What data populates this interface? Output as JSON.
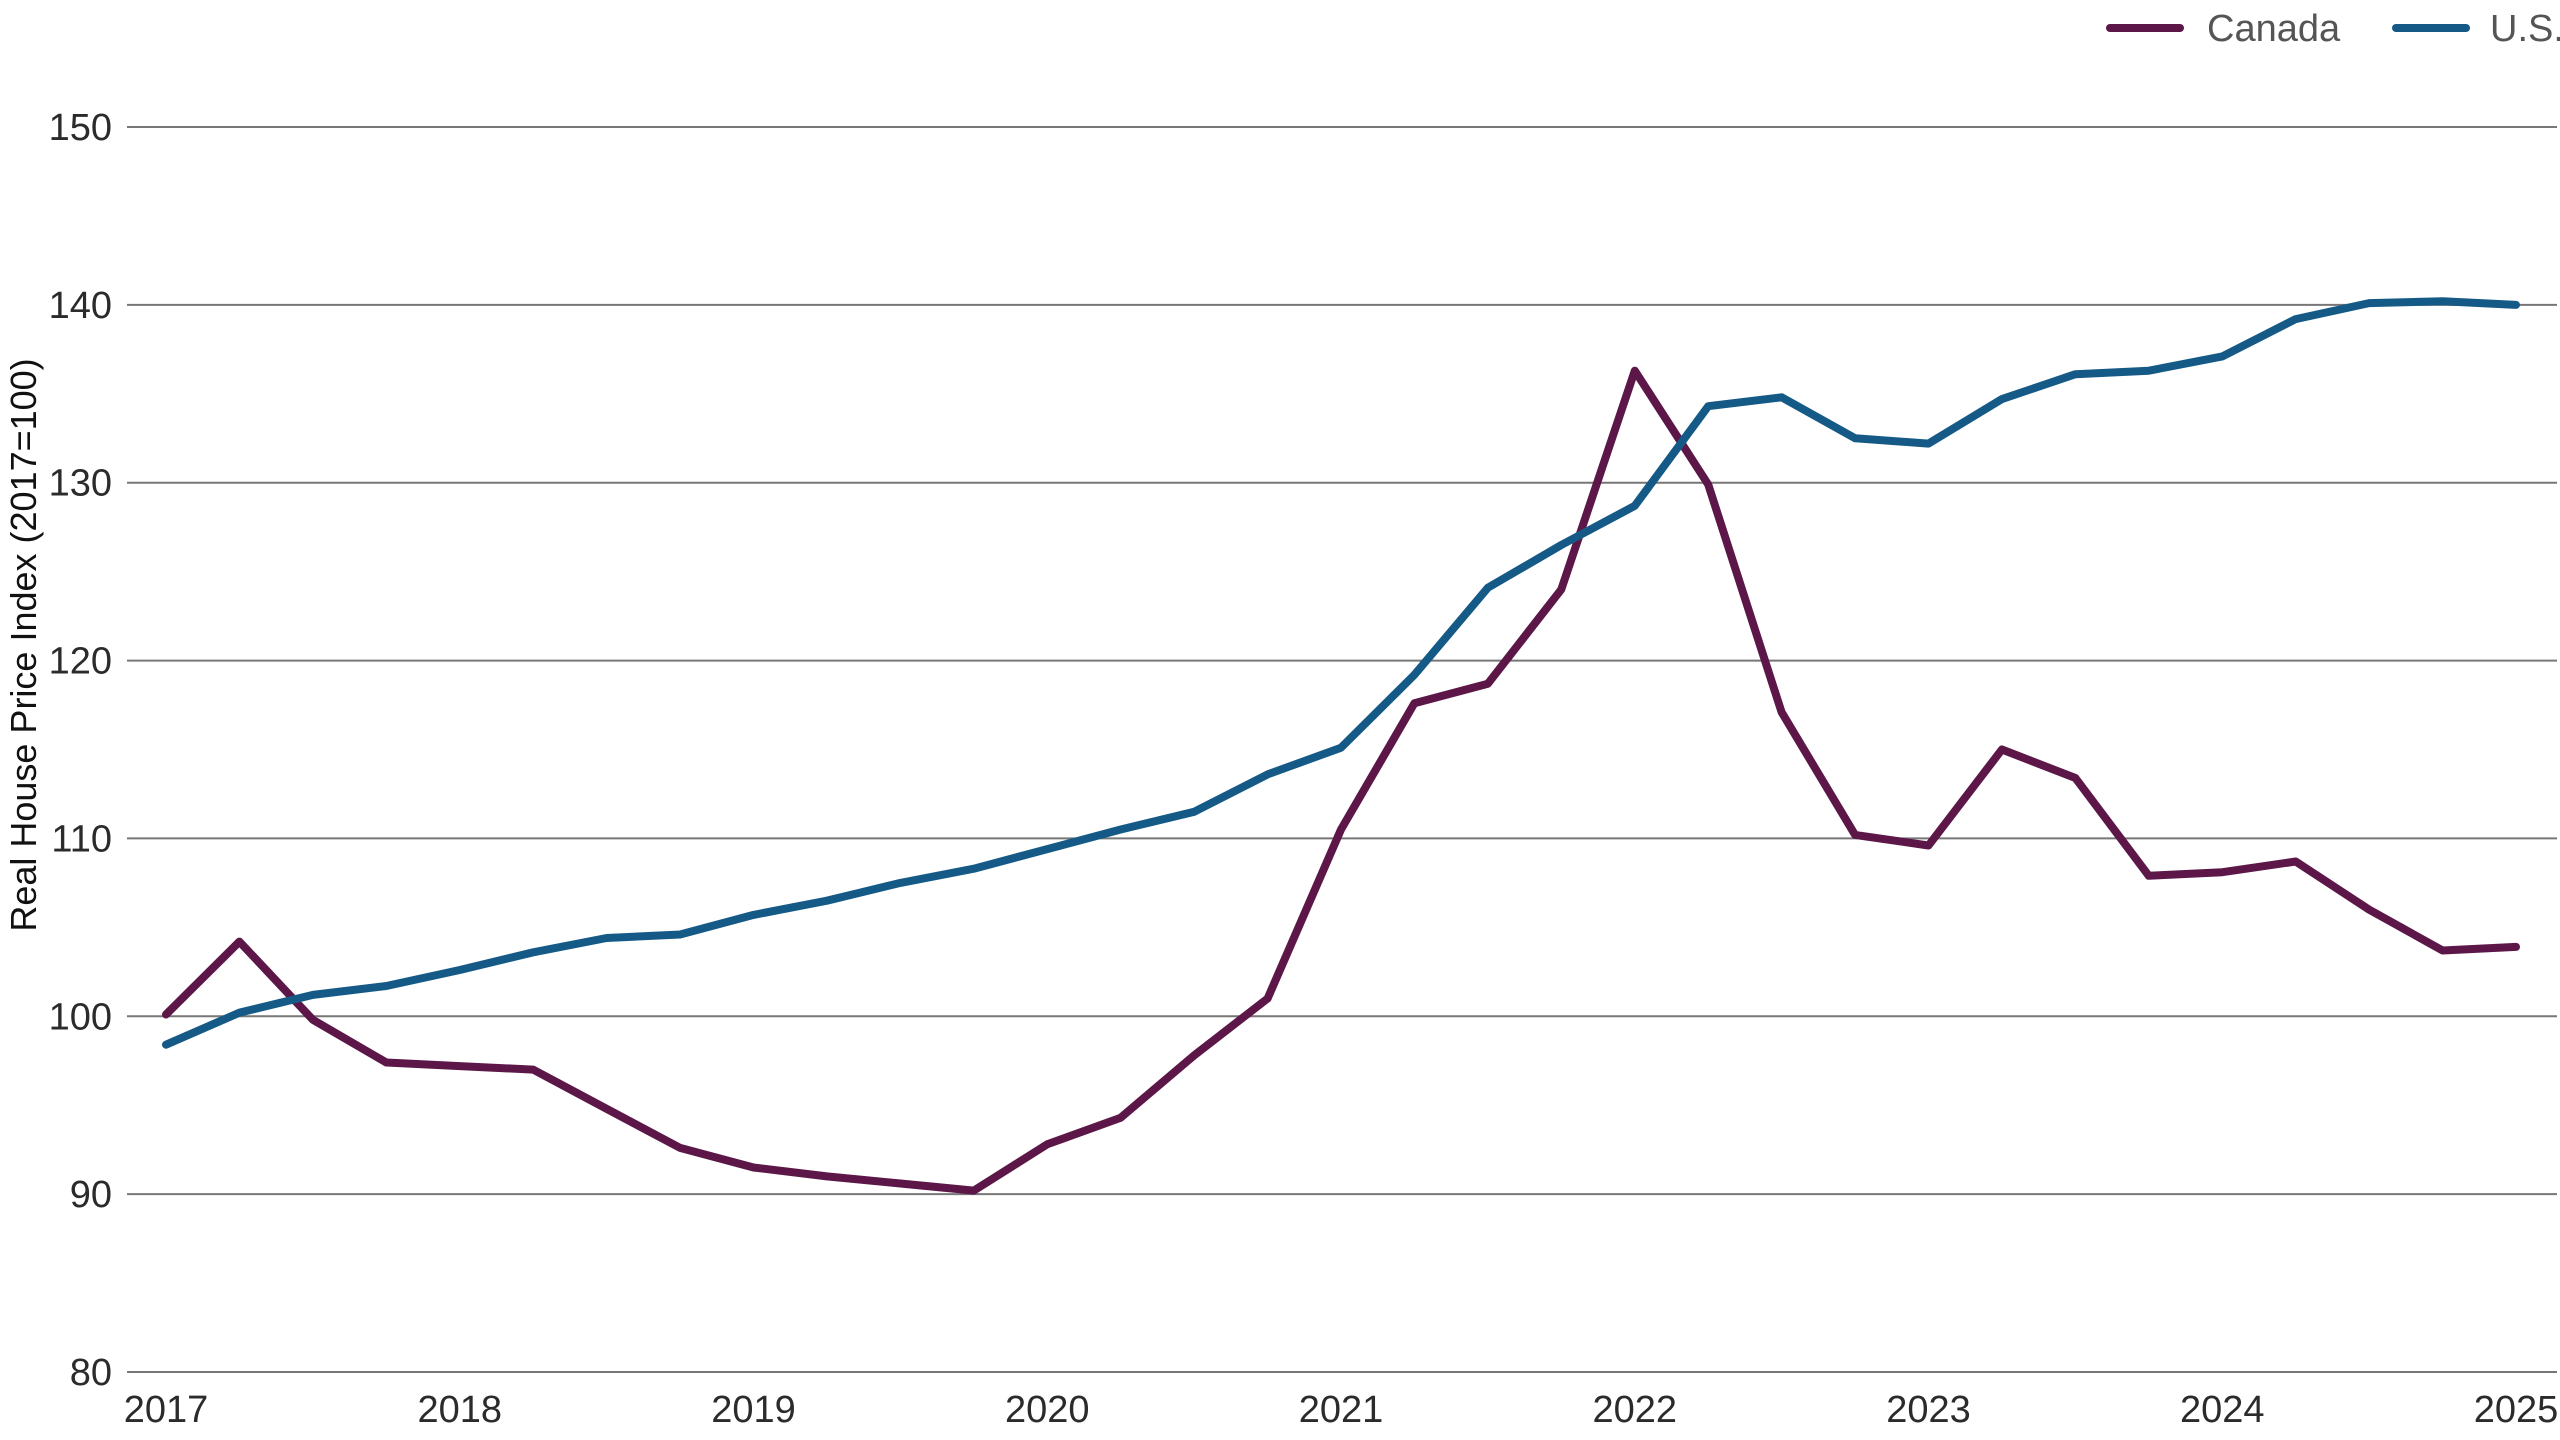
{
  "chart_data": {
    "type": "line",
    "ylabel": "Real House Price Index (2017=100)",
    "xlabel": "",
    "ylim": [
      80,
      150
    ],
    "yticks": [
      80,
      90,
      100,
      110,
      120,
      130,
      140,
      150
    ],
    "xlim": [
      2017,
      2025
    ],
    "xticks": [
      2017,
      2018,
      2019,
      2020,
      2021,
      2022,
      2023,
      2024,
      2025
    ],
    "grid": true,
    "legend": "top-right",
    "x": [
      2017.0,
      2017.25,
      2017.5,
      2017.75,
      2018.0,
      2018.25,
      2018.5,
      2018.75,
      2019.0,
      2019.25,
      2019.5,
      2019.75,
      2020.0,
      2020.25,
      2020.5,
      2020.75,
      2021.0,
      2021.25,
      2021.5,
      2021.75,
      2022.0,
      2022.25,
      2022.5,
      2022.75,
      2023.0,
      2023.25,
      2023.5,
      2023.75,
      2024.0,
      2024.25,
      2024.5,
      2024.75,
      2025.0
    ],
    "series": [
      {
        "name": "Canada",
        "color": "#5c1748",
        "values": [
          100.1,
          104.2,
          99.8,
          97.4,
          97.2,
          97.0,
          94.8,
          92.6,
          91.5,
          91.0,
          90.6,
          90.2,
          92.8,
          94.3,
          97.8,
          101.0,
          110.5,
          117.6,
          118.7,
          124.0,
          136.3,
          129.9,
          117.1,
          110.2,
          109.6,
          115.0,
          113.4,
          107.9,
          108.1,
          108.7,
          106.0,
          103.7,
          103.9
        ]
      },
      {
        "name": "U.S.",
        "color": "#155a87",
        "values": [
          98.4,
          100.2,
          101.2,
          101.7,
          102.6,
          103.6,
          104.4,
          104.6,
          105.7,
          106.5,
          107.5,
          108.3,
          109.4,
          110.5,
          111.5,
          113.6,
          115.1,
          119.2,
          124.1,
          126.5,
          128.7,
          134.3,
          134.8,
          132.5,
          132.2,
          134.7,
          136.1,
          136.3,
          137.1,
          139.2,
          140.1,
          140.2,
          140.0
        ]
      }
    ]
  }
}
